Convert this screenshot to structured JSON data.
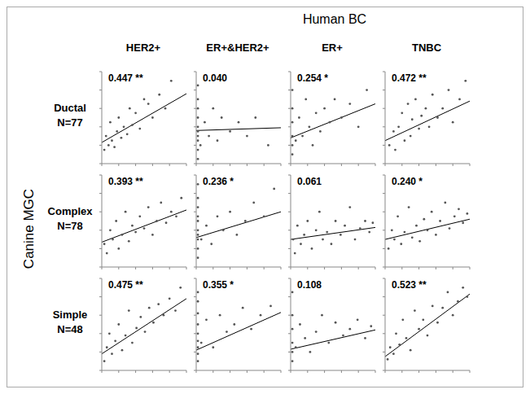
{
  "title": "Human BC",
  "y_label": "Canine MGC",
  "columns": [
    "HER2+",
    "ER+&HER2+",
    "ER+",
    "TNBC"
  ],
  "rows": [
    {
      "label": "Ductal",
      "n": "N=77"
    },
    {
      "label": "Complex",
      "n": "N=78"
    },
    {
      "label": "Simple",
      "n": "N=48"
    }
  ],
  "chart_data": [
    {
      "type": "scatter",
      "annotation": "0.447 **",
      "color": "#555555",
      "tick_labels": false,
      "xlim": [
        0,
        10
      ],
      "ylim": [
        0,
        10
      ],
      "xticks": [
        0,
        2,
        4,
        6,
        8,
        10
      ],
      "yticks": [
        0,
        2,
        4,
        6,
        8,
        10
      ],
      "x": [
        0.3,
        0.5,
        0.8,
        1,
        1.2,
        1.5,
        1.8,
        2,
        2.3,
        2.6,
        3,
        3.3,
        3.6,
        4,
        4.5,
        5,
        5.5,
        6,
        6.8,
        7.5,
        8.2
      ],
      "values": [
        1.5,
        3,
        2,
        4.5,
        2.5,
        1.8,
        3.5,
        5,
        2.8,
        4,
        3.2,
        6,
        4.2,
        5.5,
        3.8,
        7,
        6.5,
        5,
        7.5,
        6,
        9
      ],
      "fit": {
        "x": [
          0,
          10
        ],
        "values": [
          2.3,
          7.6
        ]
      }
    },
    {
      "type": "scatter",
      "annotation": "0.040",
      "color": "#555555",
      "tick_labels": false,
      "xlim": [
        0,
        10
      ],
      "ylim": [
        0,
        10
      ],
      "xticks": [
        0,
        2,
        4,
        6,
        8,
        10
      ],
      "yticks": [
        0,
        2,
        4,
        6,
        8,
        10
      ],
      "x": [
        0.2,
        0.2,
        0.2,
        0.2,
        0.2,
        0.2,
        0.2,
        0.2,
        0.2,
        0.2,
        0.5,
        1,
        1.5,
        2,
        2.5,
        3,
        4,
        5,
        6,
        7,
        8.5
      ],
      "values": [
        0.5,
        1.5,
        2.5,
        3,
        3.5,
        4,
        5,
        6,
        7,
        8.5,
        2,
        4.5,
        3,
        6,
        2.5,
        5,
        3.5,
        4.5,
        3,
        5,
        2
      ],
      "fit": {
        "x": [
          0,
          10
        ],
        "values": [
          3.6,
          3.9
        ]
      }
    },
    {
      "type": "scatter",
      "annotation": "0.254 *",
      "color": "#555555",
      "tick_labels": false,
      "xlim": [
        0,
        10
      ],
      "ylim": [
        0,
        10
      ],
      "xticks": [
        0,
        2,
        4,
        6,
        8,
        10
      ],
      "yticks": [
        0,
        2,
        4,
        6,
        8,
        10
      ],
      "x": [
        0.2,
        0.2,
        0.2,
        0.2,
        0.2,
        0.2,
        0.6,
        1,
        1.4,
        1.8,
        2.2,
        2.6,
        3,
        3.5,
        4,
        4.6,
        5.2,
        6,
        7,
        8,
        9
      ],
      "values": [
        1,
        2,
        3,
        4.5,
        6,
        8,
        2.5,
        5,
        3,
        7,
        4,
        2,
        5.5,
        3.5,
        6,
        4.5,
        7,
        5,
        6.5,
        4,
        8
      ],
      "fit": {
        "x": [
          0,
          10
        ],
        "values": [
          2.8,
          6.5
        ]
      }
    },
    {
      "type": "scatter",
      "annotation": "0.472 **",
      "color": "#555555",
      "tick_labels": false,
      "xlim": [
        0,
        10
      ],
      "ylim": [
        0,
        10
      ],
      "xticks": [
        0,
        2,
        4,
        6,
        8,
        10
      ],
      "yticks": [
        0,
        2,
        4,
        6,
        8,
        10
      ],
      "x": [
        0.5,
        1,
        1.2,
        1.6,
        2,
        2.3,
        2.7,
        3,
        3.2,
        3.6,
        4,
        4.3,
        4.8,
        5.2,
        5.6,
        6.2,
        6.8,
        7.5,
        8,
        8.8,
        9.5
      ],
      "values": [
        2,
        3.5,
        1.5,
        4,
        5.5,
        2.5,
        6.5,
        3,
        4.8,
        7,
        3.8,
        5.2,
        6,
        4,
        7.5,
        5,
        6,
        8,
        4.5,
        7,
        9
      ],
      "fit": {
        "x": [
          0,
          10
        ],
        "values": [
          2.5,
          6.8
        ]
      }
    },
    {
      "type": "scatter",
      "annotation": "0.393 **",
      "color": "#555555",
      "tick_labels": false,
      "xlim": [
        0,
        10
      ],
      "ylim": [
        0,
        10
      ],
      "xticks": [
        0,
        2,
        4,
        6,
        8,
        10
      ],
      "yticks": [
        0,
        2,
        4,
        6,
        8,
        10
      ],
      "x": [
        0.3,
        0.6,
        1,
        1.3,
        1.7,
        2,
        2.4,
        2.8,
        3.2,
        3.6,
        4,
        4.5,
        5,
        5.5,
        6,
        6.5,
        7,
        7.6,
        8.2,
        8.8,
        9.4
      ],
      "values": [
        2.5,
        1.5,
        4,
        3,
        5,
        2,
        3.5,
        6,
        2.8,
        4.5,
        3.8,
        5.5,
        4.2,
        6.5,
        3.5,
        5,
        7,
        4.8,
        6,
        5.5,
        7.5
      ],
      "fit": {
        "x": [
          0,
          10
        ],
        "values": [
          2.7,
          6.2
        ]
      }
    },
    {
      "type": "scatter",
      "annotation": "0.236 *",
      "color": "#555555",
      "tick_labels": false,
      "xlim": [
        0,
        10
      ],
      "ylim": [
        0,
        10
      ],
      "xticks": [
        0,
        2,
        4,
        6,
        8,
        10
      ],
      "yticks": [
        0,
        2,
        4,
        6,
        8,
        10
      ],
      "x": [
        0.2,
        0.2,
        0.2,
        0.2,
        0.2,
        0.2,
        0.2,
        0.2,
        0.2,
        0.2,
        0.6,
        1.2,
        1.8,
        2.5,
        3.2,
        4,
        4.8,
        5.8,
        6.8,
        8,
        9.2
      ],
      "values": [
        1,
        2,
        3,
        3.5,
        4,
        5,
        5.5,
        6.5,
        7.5,
        9,
        3,
        4.5,
        2.5,
        5.5,
        4,
        6,
        3.5,
        5,
        7,
        5.5,
        8.5
      ],
      "fit": {
        "x": [
          0,
          10
        ],
        "values": [
          3.2,
          6.0
        ]
      }
    },
    {
      "type": "scatter",
      "annotation": "0.061",
      "color": "#555555",
      "tick_labels": false,
      "xlim": [
        0,
        10
      ],
      "ylim": [
        0,
        10
      ],
      "xticks": [
        0,
        2,
        4,
        6,
        8,
        10
      ],
      "yticks": [
        0,
        2,
        4,
        6,
        8,
        10
      ],
      "x": [
        0.3,
        0.5,
        0.8,
        1.2,
        1.6,
        2,
        2.5,
        3,
        3.4,
        3.8,
        4.3,
        4.8,
        5.3,
        5.9,
        6.4,
        7,
        7.6,
        8.2,
        8.8,
        9.3,
        9.7
      ],
      "values": [
        3,
        1.5,
        4.5,
        2.5,
        3.5,
        5,
        2,
        4,
        6,
        3,
        3.8,
        2.5,
        5,
        3.5,
        4.5,
        6.5,
        3,
        4.2,
        5,
        3.8,
        4.8
      ],
      "fit": {
        "x": [
          0,
          10
        ],
        "values": [
          3.0,
          4.3
        ]
      }
    },
    {
      "type": "scatter",
      "annotation": "0.240 *",
      "color": "#555555",
      "tick_labels": false,
      "xlim": [
        0,
        10
      ],
      "ylim": [
        0,
        10
      ],
      "xticks": [
        0,
        2,
        4,
        6,
        8,
        10
      ],
      "yticks": [
        0,
        2,
        4,
        6,
        8,
        10
      ],
      "x": [
        0.4,
        0.8,
        1.1,
        1.5,
        1.9,
        2.3,
        2.8,
        3.2,
        3.7,
        4.1,
        4.6,
        5,
        5.5,
        6,
        6.5,
        7.1,
        7.6,
        8.2,
        8.7,
        9.2,
        9.7
      ],
      "values": [
        2,
        4,
        3,
        5.5,
        2.5,
        3.8,
        6.5,
        3.2,
        4.5,
        2.8,
        5.2,
        4,
        6,
        3.5,
        5,
        7,
        4.2,
        5.5,
        6.3,
        4.8,
        5.8
      ],
      "fit": {
        "x": [
          0,
          10
        ],
        "values": [
          3.0,
          5.2
        ]
      }
    },
    {
      "type": "scatter",
      "annotation": "0.475 **",
      "color": "#555555",
      "tick_labels": false,
      "xlim": [
        0,
        10
      ],
      "ylim": [
        0,
        10
      ],
      "xticks": [
        0,
        2,
        4,
        6,
        8,
        10
      ],
      "yticks": [
        0,
        2,
        4,
        6,
        8,
        10
      ],
      "x": [
        0.3,
        0.6,
        0.9,
        1.2,
        1.6,
        2,
        2.4,
        2.8,
        3.2,
        3.6,
        4.1,
        4.6,
        5.1,
        5.6,
        6.1,
        6.7,
        7.3,
        8,
        8.7,
        9.3
      ],
      "values": [
        1,
        2.5,
        4,
        1.8,
        3.2,
        5,
        2.2,
        3.8,
        6.5,
        3,
        4.6,
        5.8,
        4.2,
        6.8,
        5.2,
        7.2,
        6,
        7.8,
        6.5,
        9
      ],
      "fit": {
        "x": [
          0,
          10
        ],
        "values": [
          1.8,
          7.8
        ]
      }
    },
    {
      "type": "scatter",
      "annotation": "0.355 *",
      "color": "#555555",
      "tick_labels": false,
      "xlim": [
        0,
        10
      ],
      "ylim": [
        0,
        10
      ],
      "xticks": [
        0,
        2,
        4,
        6,
        8,
        10
      ],
      "yticks": [
        0,
        2,
        4,
        6,
        8,
        10
      ],
      "x": [
        0.2,
        0.2,
        0.2,
        0.2,
        0.2,
        0.2,
        0.2,
        0.2,
        0.2,
        0.6,
        1.2,
        2,
        2.8,
        3.6,
        4.5,
        5.5,
        6.5,
        7.6,
        8.8
      ],
      "values": [
        1,
        1.8,
        2.5,
        3.2,
        4,
        5,
        6.2,
        7.5,
        8.5,
        3,
        5.5,
        2.5,
        6,
        4.2,
        5,
        6.8,
        4.5,
        6,
        7
      ],
      "fit": {
        "x": [
          0,
          10
        ],
        "values": [
          2.2,
          6.3
        ]
      }
    },
    {
      "type": "scatter",
      "annotation": "0.108",
      "color": "#555555",
      "tick_labels": false,
      "xlim": [
        0,
        10
      ],
      "ylim": [
        0,
        10
      ],
      "xticks": [
        0,
        2,
        4,
        6,
        8,
        10
      ],
      "yticks": [
        0,
        2,
        4,
        6,
        8,
        10
      ],
      "x": [
        0.2,
        0.2,
        0.2,
        0.2,
        0.2,
        0.2,
        0.6,
        1.1,
        1.7,
        2.3,
        3,
        3.7,
        4.5,
        5.3,
        6.2,
        7,
        7.9,
        8.8,
        9.5
      ],
      "values": [
        1,
        2,
        3,
        4.5,
        6,
        8.5,
        2.5,
        5,
        3.5,
        2,
        4.2,
        6,
        3,
        5.2,
        3.8,
        4.5,
        5.5,
        3.5,
        4.8
      ],
      "fit": {
        "x": [
          0,
          10
        ],
        "values": [
          2.3,
          4.4
        ]
      }
    },
    {
      "type": "scatter",
      "annotation": "0.523 **",
      "color": "#555555",
      "tick_labels": false,
      "xlim": [
        0,
        10
      ],
      "ylim": [
        0,
        10
      ],
      "xticks": [
        0,
        2,
        4,
        6,
        8,
        10
      ],
      "yticks": [
        0,
        2,
        4,
        6,
        8,
        10
      ],
      "x": [
        0.3,
        0.6,
        1,
        1.3,
        1.7,
        2.1,
        2.5,
        3,
        3.5,
        4,
        4.5,
        5,
        5.6,
        6.2,
        6.8,
        7.4,
        8,
        8.6,
        9.2,
        9.7
      ],
      "values": [
        1.2,
        2.5,
        1.8,
        4,
        2.8,
        5.5,
        3.5,
        2.2,
        6.5,
        4.5,
        5.5,
        3.8,
        7,
        5.2,
        6.8,
        8.5,
        6,
        7.5,
        9,
        8
      ],
      "fit": {
        "x": [
          0,
          10
        ],
        "values": [
          1.5,
          8.3
        ]
      }
    }
  ]
}
